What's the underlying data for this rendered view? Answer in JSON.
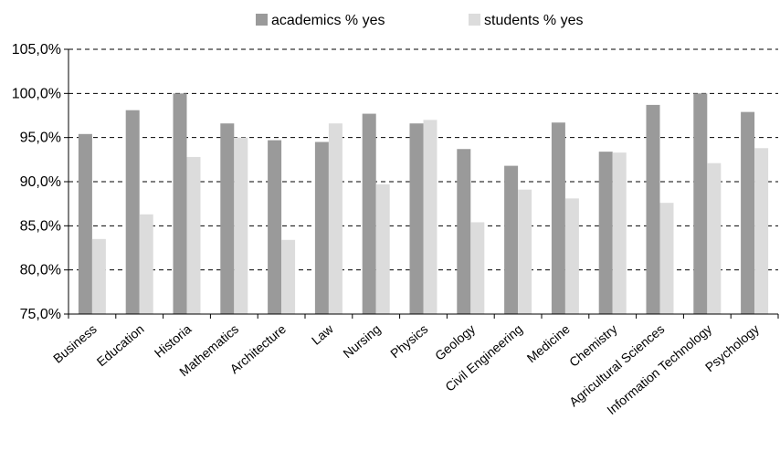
{
  "chart_data": {
    "type": "bar",
    "categories": [
      "Business",
      "Education",
      "Historia",
      "Mathematics",
      "Architecture",
      "Law",
      "Nursing",
      "Physics",
      "Geology",
      "Civil Engineering",
      "Medicine",
      "Chemistry",
      "Agricultural Sciences",
      "Information Technology",
      "Psychology"
    ],
    "series": [
      {
        "name": "academics % yes",
        "color": "#9a9a9a",
        "values": [
          95.4,
          98.1,
          100.0,
          96.6,
          94.7,
          94.5,
          97.7,
          96.6,
          93.7,
          91.8,
          96.7,
          93.4,
          98.7,
          100.0,
          97.9
        ]
      },
      {
        "name": "students % yes",
        "color": "#dcdcdc",
        "values": [
          83.5,
          86.3,
          92.8,
          95.0,
          83.4,
          96.6,
          89.7,
          97.0,
          85.4,
          89.1,
          88.1,
          93.3,
          87.6,
          92.1,
          93.8
        ]
      }
    ],
    "ylim": [
      75,
      105
    ],
    "yticks": [
      75,
      80,
      85,
      90,
      95,
      100,
      105
    ],
    "ytick_labels": [
      "75,0%",
      "80,0%",
      "85,0%",
      "90,0%",
      "95,0%",
      "100,0%",
      "105,0%"
    ],
    "grid": true,
    "grid_style": "dashed",
    "legend_position": "top-center",
    "title": "",
    "xlabel": "",
    "ylabel": ""
  }
}
